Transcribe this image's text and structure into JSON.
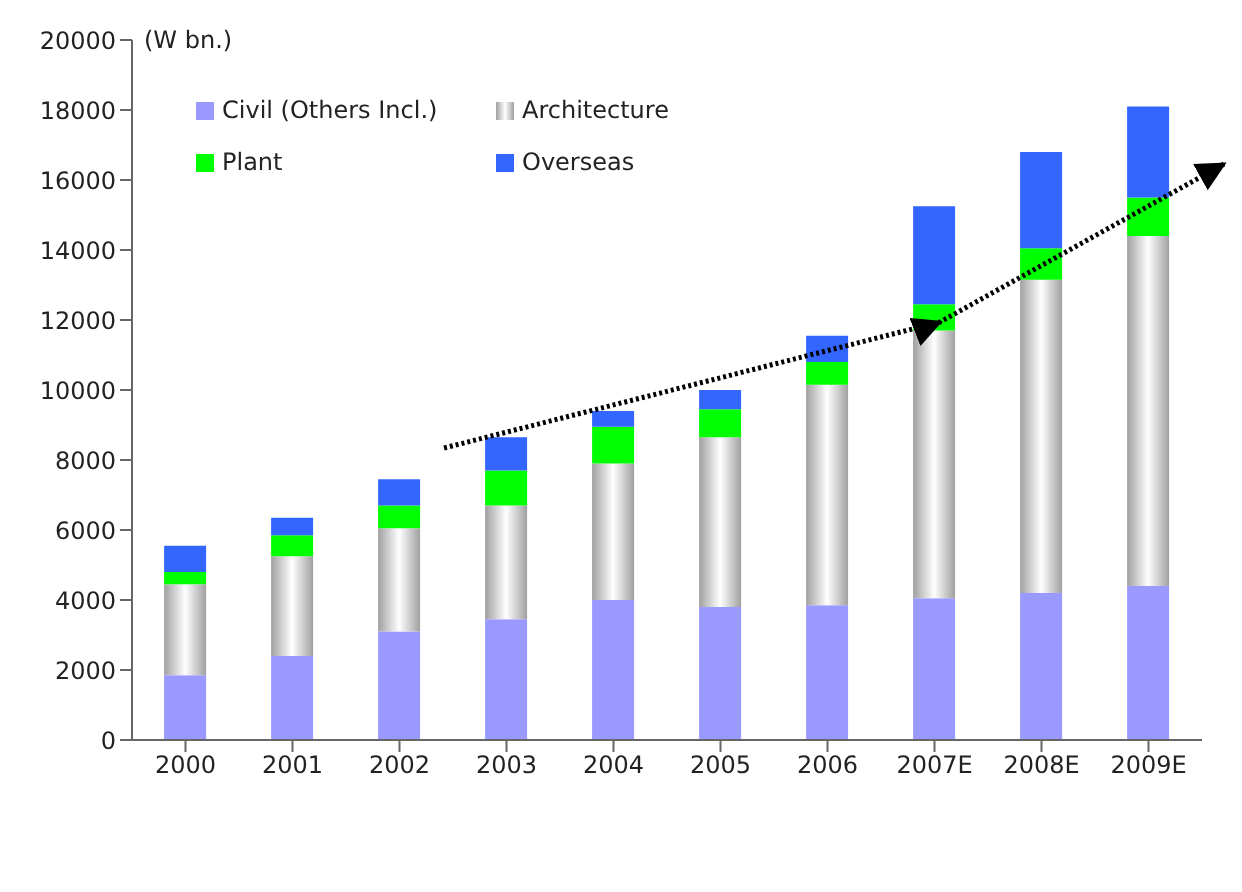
{
  "chart_data": {
    "type": "bar",
    "stacked": true,
    "ylabel": "(W bn.)",
    "categories": [
      "2000",
      "2001",
      "2002",
      "2003",
      "2004",
      "2005",
      "2006",
      "2007E",
      "2008E",
      "2009E"
    ],
    "series": [
      {
        "name": "Civil (Others Incl.)",
        "color": "#9999ff",
        "values": [
          1850,
          2400,
          3100,
          3450,
          4000,
          3800,
          3850,
          4050,
          4200,
          4400
        ]
      },
      {
        "name": "Architecture",
        "color": "#a0a0a0",
        "values": [
          2600,
          2850,
          2950,
          3250,
          3900,
          4850,
          6300,
          7650,
          8950,
          10000
        ]
      },
      {
        "name": "Plant",
        "color": "#00ff00",
        "values": [
          350,
          600,
          650,
          1000,
          1050,
          800,
          650,
          750,
          900,
          1100
        ]
      },
      {
        "name": "Overseas",
        "color": "#3366ff",
        "values": [
          750,
          500,
          750,
          950,
          450,
          550,
          750,
          2800,
          2750,
          2600
        ]
      }
    ],
    "ylim": [
      0,
      20000
    ],
    "yticks": [
      0,
      2000,
      4000,
      6000,
      8000,
      10000,
      12000,
      14000,
      16000,
      18000,
      20000
    ],
    "grid": false,
    "legend": "top left"
  }
}
